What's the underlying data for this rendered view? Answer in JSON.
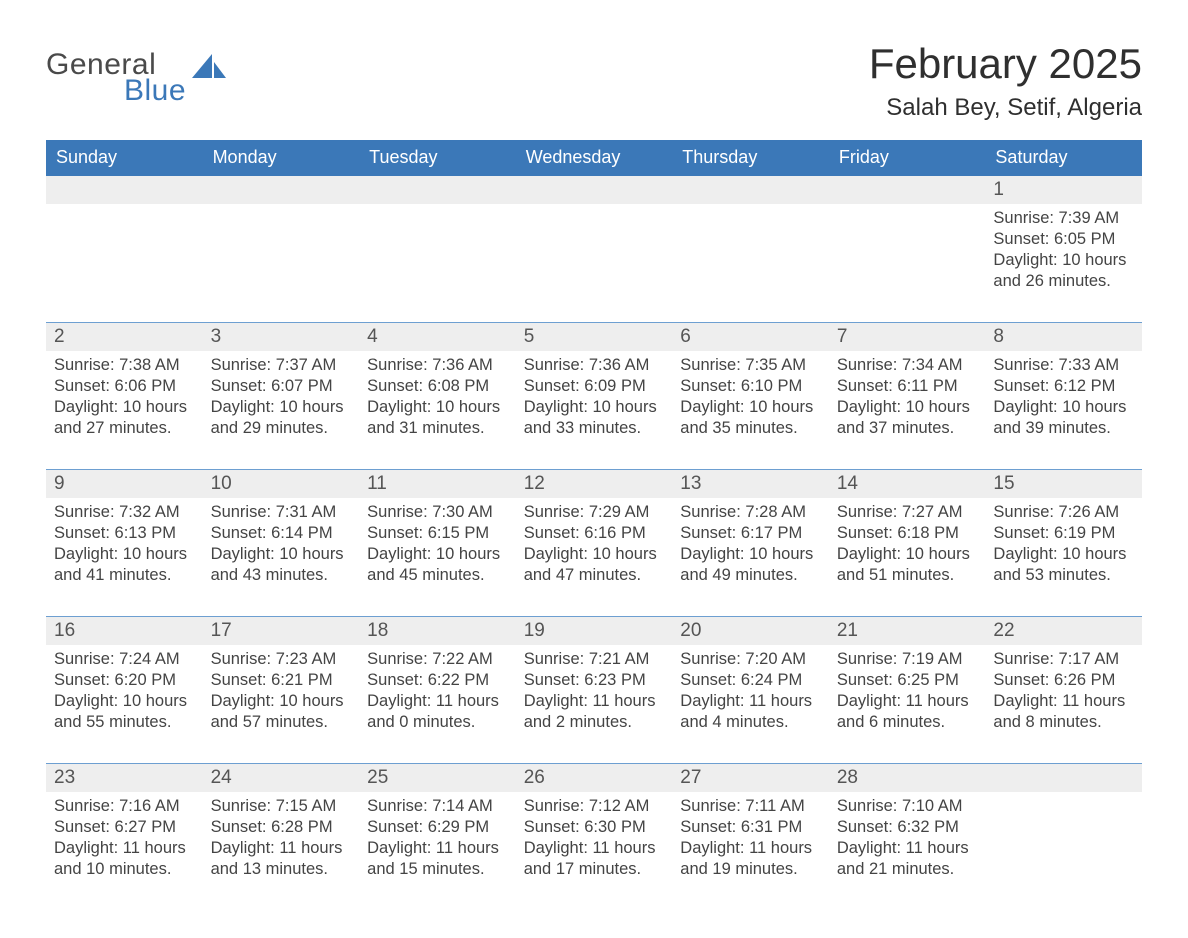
{
  "brand": {
    "line1": "General",
    "line2": "Blue",
    "sail_color": "#3b78b8"
  },
  "title": {
    "month": "February 2025",
    "location": "Salah Bey, Setif, Algeria"
  },
  "colors": {
    "header_bg": "#3b78b8",
    "header_text": "#ffffff",
    "rule": "#6d9fd1",
    "daynum_band": "#eeeeee",
    "text": "#333333"
  },
  "dow": [
    "Sunday",
    "Monday",
    "Tuesday",
    "Wednesday",
    "Thursday",
    "Friday",
    "Saturday"
  ],
  "weeks": [
    [
      null,
      null,
      null,
      null,
      null,
      null,
      {
        "n": 1,
        "sunrise": "7:39 AM",
        "sunset": "6:05 PM",
        "dl_h": 10,
        "dl_m": 26
      }
    ],
    [
      {
        "n": 2,
        "sunrise": "7:38 AM",
        "sunset": "6:06 PM",
        "dl_h": 10,
        "dl_m": 27
      },
      {
        "n": 3,
        "sunrise": "7:37 AM",
        "sunset": "6:07 PM",
        "dl_h": 10,
        "dl_m": 29
      },
      {
        "n": 4,
        "sunrise": "7:36 AM",
        "sunset": "6:08 PM",
        "dl_h": 10,
        "dl_m": 31
      },
      {
        "n": 5,
        "sunrise": "7:36 AM",
        "sunset": "6:09 PM",
        "dl_h": 10,
        "dl_m": 33
      },
      {
        "n": 6,
        "sunrise": "7:35 AM",
        "sunset": "6:10 PM",
        "dl_h": 10,
        "dl_m": 35
      },
      {
        "n": 7,
        "sunrise": "7:34 AM",
        "sunset": "6:11 PM",
        "dl_h": 10,
        "dl_m": 37
      },
      {
        "n": 8,
        "sunrise": "7:33 AM",
        "sunset": "6:12 PM",
        "dl_h": 10,
        "dl_m": 39
      }
    ],
    [
      {
        "n": 9,
        "sunrise": "7:32 AM",
        "sunset": "6:13 PM",
        "dl_h": 10,
        "dl_m": 41
      },
      {
        "n": 10,
        "sunrise": "7:31 AM",
        "sunset": "6:14 PM",
        "dl_h": 10,
        "dl_m": 43
      },
      {
        "n": 11,
        "sunrise": "7:30 AM",
        "sunset": "6:15 PM",
        "dl_h": 10,
        "dl_m": 45
      },
      {
        "n": 12,
        "sunrise": "7:29 AM",
        "sunset": "6:16 PM",
        "dl_h": 10,
        "dl_m": 47
      },
      {
        "n": 13,
        "sunrise": "7:28 AM",
        "sunset": "6:17 PM",
        "dl_h": 10,
        "dl_m": 49
      },
      {
        "n": 14,
        "sunrise": "7:27 AM",
        "sunset": "6:18 PM",
        "dl_h": 10,
        "dl_m": 51
      },
      {
        "n": 15,
        "sunrise": "7:26 AM",
        "sunset": "6:19 PM",
        "dl_h": 10,
        "dl_m": 53
      }
    ],
    [
      {
        "n": 16,
        "sunrise": "7:24 AM",
        "sunset": "6:20 PM",
        "dl_h": 10,
        "dl_m": 55
      },
      {
        "n": 17,
        "sunrise": "7:23 AM",
        "sunset": "6:21 PM",
        "dl_h": 10,
        "dl_m": 57
      },
      {
        "n": 18,
        "sunrise": "7:22 AM",
        "sunset": "6:22 PM",
        "dl_h": 11,
        "dl_m": 0
      },
      {
        "n": 19,
        "sunrise": "7:21 AM",
        "sunset": "6:23 PM",
        "dl_h": 11,
        "dl_m": 2
      },
      {
        "n": 20,
        "sunrise": "7:20 AM",
        "sunset": "6:24 PM",
        "dl_h": 11,
        "dl_m": 4
      },
      {
        "n": 21,
        "sunrise": "7:19 AM",
        "sunset": "6:25 PM",
        "dl_h": 11,
        "dl_m": 6
      },
      {
        "n": 22,
        "sunrise": "7:17 AM",
        "sunset": "6:26 PM",
        "dl_h": 11,
        "dl_m": 8
      }
    ],
    [
      {
        "n": 23,
        "sunrise": "7:16 AM",
        "sunset": "6:27 PM",
        "dl_h": 11,
        "dl_m": 10
      },
      {
        "n": 24,
        "sunrise": "7:15 AM",
        "sunset": "6:28 PM",
        "dl_h": 11,
        "dl_m": 13
      },
      {
        "n": 25,
        "sunrise": "7:14 AM",
        "sunset": "6:29 PM",
        "dl_h": 11,
        "dl_m": 15
      },
      {
        "n": 26,
        "sunrise": "7:12 AM",
        "sunset": "6:30 PM",
        "dl_h": 11,
        "dl_m": 17
      },
      {
        "n": 27,
        "sunrise": "7:11 AM",
        "sunset": "6:31 PM",
        "dl_h": 11,
        "dl_m": 19
      },
      {
        "n": 28,
        "sunrise": "7:10 AM",
        "sunset": "6:32 PM",
        "dl_h": 11,
        "dl_m": 21
      },
      null
    ]
  ],
  "labels": {
    "sunrise": "Sunrise",
    "sunset": "Sunset",
    "daylight": "Daylight",
    "hours": "hours",
    "and": "and",
    "minutes": "minutes."
  }
}
